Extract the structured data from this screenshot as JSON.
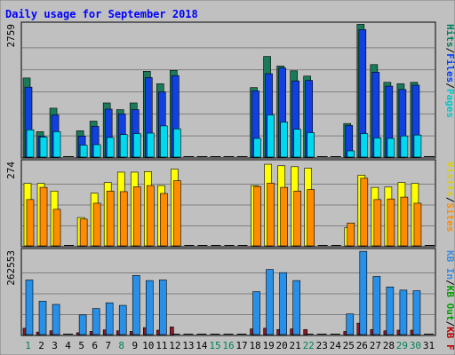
{
  "chart_data": {
    "type": "bar",
    "title": "Daily usage for September 2018",
    "days": [
      "1",
      "2",
      "3",
      "4",
      "5",
      "6",
      "7",
      "8",
      "9",
      "10",
      "11",
      "12",
      "13",
      "14",
      "15",
      "16",
      "17",
      "18",
      "19",
      "20",
      "21",
      "22",
      "23",
      "24",
      "25",
      "26",
      "27",
      "28",
      "29",
      "30",
      "31"
    ],
    "weekend_days": [
      1,
      8,
      15,
      16,
      22,
      29,
      30
    ],
    "panels": [
      {
        "id": "hits-files-pages",
        "max_label": "2759",
        "ymax": 2759,
        "legend": [
          {
            "text": "Pages",
            "color": "#00c8c8"
          },
          {
            "text": "/",
            "color": "#000000"
          },
          {
            "text": "Files",
            "color": "#0040ff"
          },
          {
            "text": "/",
            "color": "#000000"
          },
          {
            "text": "Hits",
            "color": "#00805c"
          }
        ],
        "series": [
          {
            "name": "Hits",
            "color": "#1a7a5a",
            "values": [
              1650,
              530,
              1020,
              0,
              550,
              750,
              1130,
              990,
              1130,
              1790,
              1530,
              1810,
              0,
              0,
              0,
              0,
              0,
              1450,
              2100,
              1900,
              1800,
              1690,
              0,
              0,
              700,
              2770,
              1930,
              1560,
              1530,
              1560,
              0
            ]
          },
          {
            "name": "Files",
            "color": "#1040e0",
            "values": [
              1460,
              440,
              880,
              0,
              440,
              640,
              1000,
              900,
              990,
              1660,
              1360,
              1700,
              0,
              0,
              0,
              0,
              0,
              1380,
              1740,
              1860,
              1590,
              1600,
              0,
              0,
              660,
              2660,
              1770,
              1480,
              1410,
              1500,
              0
            ]
          },
          {
            "name": "Pages",
            "color": "#00d8f0",
            "values": [
              570,
              420,
              530,
              0,
              250,
              260,
              410,
              470,
              490,
              500,
              650,
              590,
              0,
              0,
              0,
              0,
              0,
              390,
              880,
              730,
              580,
              510,
              0,
              0,
              130,
              490,
              400,
              390,
              440,
              460,
              0
            ]
          }
        ]
      },
      {
        "id": "visits-sites",
        "max_label": "274",
        "ymax": 274,
        "legend": [
          {
            "text": "Sites",
            "color": "#ff8c00"
          },
          {
            "text": "/",
            "color": "#000000"
          },
          {
            "text": "Visits",
            "color": "#e0d000"
          }
        ],
        "series": [
          {
            "name": "Visits",
            "color": "#ffff00",
            "values": [
              205,
              205,
              180,
              0,
              93,
              173,
              208,
              242,
              242,
              244,
              198,
              252,
              0,
              0,
              0,
              0,
              0,
              198,
              268,
              263,
              260,
              255,
              0,
              0,
              60,
              232,
              192,
              193,
              208,
              205,
              0
            ]
          },
          {
            "name": "Sites",
            "color": "#ff8c00",
            "values": [
              152,
              192,
              120,
              0,
              88,
              140,
              180,
              178,
              194,
              198,
              172,
              214,
              0,
              0,
              0,
              0,
              0,
              195,
              206,
              192,
              180,
              185,
              0,
              0,
              75,
              222,
              152,
              154,
              160,
              140,
              0
            ]
          }
        ]
      },
      {
        "id": "kbin-kbout",
        "max_label": "262553",
        "ymax": 262553,
        "legend": [
          {
            "text": "KB F",
            "color": "#c00000"
          },
          {
            "text": "/",
            "color": "#000000"
          },
          {
            "text": "KB Out",
            "color": "#00a000"
          },
          {
            "text": "/",
            "color": "#000000"
          },
          {
            "text": "KB In",
            "color": "#3c8ce0"
          }
        ],
        "series": [
          {
            "name": "KB F",
            "color": "#8c1a2a",
            "values": [
              20000,
              8000,
              12000,
              0,
              6000,
              10000,
              15000,
              12000,
              10000,
              22000,
              14000,
              24000,
              0,
              0,
              0,
              0,
              0,
              18000,
              20000,
              16000,
              18000,
              16000,
              0,
              0,
              10000,
              36000,
              16000,
              12000,
              14000,
              14000,
              0
            ]
          },
          {
            "name": "KB In",
            "color": "#2890e8",
            "values": [
              172000,
              105000,
              95000,
              0,
              62000,
              82000,
              100000,
              92000,
              186000,
              170000,
              172000,
              0,
              0,
              0,
              0,
              0,
              0,
              135000,
              205000,
              195000,
              170000,
              0,
              0,
              0,
              65000,
              262000,
              183000,
              150000,
              140000,
              138000,
              0
            ]
          }
        ]
      }
    ]
  }
}
